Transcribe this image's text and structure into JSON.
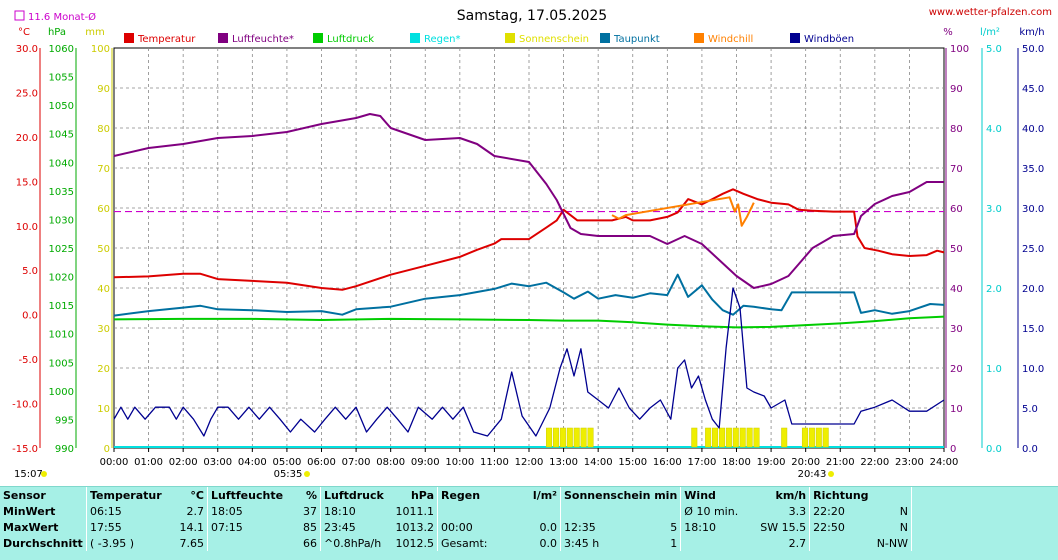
{
  "header": {
    "title": "Samstag, 17.05.2025",
    "site": "www.wetter-pfalzen.com",
    "month_avg_label": "11.6 Monat-Ø",
    "unit_c": "°C",
    "unit_hpa": "hPa",
    "unit_mm": "mm",
    "unit_pct": "%",
    "unit_lm2": "l/m²",
    "unit_kmh": "km/h",
    "sunrise": "05:35",
    "sunset": "20:43",
    "timestamp": "15:07"
  },
  "legend": [
    {
      "label": "Temperatur",
      "color": "#dd0000"
    },
    {
      "label": "Luftfeuchte*",
      "color": "#800080"
    },
    {
      "label": "Luftdruck",
      "color": "#00cc00"
    },
    {
      "label": "Regen*",
      "color": "#00e0e0"
    },
    {
      "label": "Sonnenschein",
      "color": "#e0e000"
    },
    {
      "label": "Taupunkt",
      "color": "#0070a0"
    },
    {
      "label": "Windchill",
      "color": "#ff8000"
    },
    {
      "label": "Windböen",
      "color": "#000090"
    }
  ],
  "chart_data": {
    "type": "line",
    "title": "Samstag, 17.05.2025",
    "x_ticks": [
      "00:00",
      "01:00",
      "02:00",
      "03:00",
      "04:00",
      "05:00",
      "06:00",
      "07:00",
      "08:00",
      "09:00",
      "10:00",
      "11:00",
      "12:00",
      "13:00",
      "14:00",
      "15:00",
      "16:00",
      "17:00",
      "18:00",
      "19:00",
      "20:00",
      "21:00",
      "22:00",
      "23:00",
      "24:00"
    ],
    "axes": {
      "temp_c": {
        "range": [
          -15,
          30
        ],
        "ticks": [
          "30.0",
          "25.0",
          "20.0",
          "15.0",
          "10.0",
          "5.0",
          "0.0",
          "-5.0",
          "-10.0",
          "-15.0"
        ]
      },
      "pressure_hpa": {
        "range": [
          990,
          1060
        ],
        "ticks": [
          "1060",
          "1055",
          "1050",
          "1045",
          "1040",
          "1035",
          "1030",
          "1025",
          "1020",
          "1015",
          "1010",
          "1005",
          "1000",
          "995",
          "990"
        ]
      },
      "precip_mm": {
        "range": [
          0,
          100
        ],
        "ticks": [
          "100",
          "90",
          "80",
          "70",
          "60",
          "50",
          "40",
          "30",
          "20",
          "10",
          "0"
        ]
      },
      "humidity_pct": {
        "range": [
          0,
          100
        ],
        "ticks": [
          "100",
          "90",
          "80",
          "70",
          "60",
          "50",
          "40",
          "30",
          "20",
          "10",
          "0"
        ]
      },
      "rain_lm2": {
        "range": [
          0,
          5
        ],
        "ticks": [
          "5.0",
          "4.0",
          "3.0",
          "2.0",
          "1.0",
          "0.0"
        ]
      },
      "wind_kmh": {
        "range": [
          0,
          50
        ],
        "ticks": [
          "50.0",
          "45.0",
          "40.0",
          "35.0",
          "30.0",
          "25.0",
          "20.0",
          "15.0",
          "10.0",
          "5.0",
          "0.0"
        ]
      }
    },
    "month_avg_temp": 11.6,
    "series": [
      {
        "name": "Temperatur",
        "axis": "temp_c",
        "color": "#dd0000",
        "points": [
          [
            0,
            4.2
          ],
          [
            1,
            4.3
          ],
          [
            2,
            4.6
          ],
          [
            2.5,
            4.6
          ],
          [
            3,
            4.0
          ],
          [
            4,
            3.8
          ],
          [
            5,
            3.6
          ],
          [
            6,
            3.0
          ],
          [
            6.6,
            2.8
          ],
          [
            7,
            3.2
          ],
          [
            8,
            4.5
          ],
          [
            9,
            5.5
          ],
          [
            10,
            6.5
          ],
          [
            10.5,
            7.3
          ],
          [
            11,
            8.0
          ],
          [
            11.2,
            8.5
          ],
          [
            12,
            8.5
          ],
          [
            12.5,
            9.8
          ],
          [
            12.8,
            10.6
          ],
          [
            13.0,
            11.8
          ],
          [
            13.4,
            10.6
          ],
          [
            14,
            10.6
          ],
          [
            14.4,
            10.6
          ],
          [
            14.8,
            11.0
          ],
          [
            15,
            10.6
          ],
          [
            15.5,
            10.6
          ],
          [
            16,
            11.0
          ],
          [
            16.3,
            11.5
          ],
          [
            16.6,
            13.0
          ],
          [
            17,
            12.4
          ],
          [
            17.3,
            13.0
          ],
          [
            17.6,
            13.6
          ],
          [
            17.9,
            14.1
          ],
          [
            18.2,
            13.6
          ],
          [
            18.6,
            13.0
          ],
          [
            19,
            12.6
          ],
          [
            19.5,
            12.4
          ],
          [
            19.8,
            11.8
          ],
          [
            20.2,
            11.7
          ],
          [
            20.8,
            11.6
          ],
          [
            21.4,
            11.6
          ],
          [
            21.5,
            8.8
          ],
          [
            21.7,
            7.5
          ],
          [
            22.1,
            7.2
          ],
          [
            22.5,
            6.8
          ],
          [
            23,
            6.6
          ],
          [
            23.5,
            6.7
          ],
          [
            23.8,
            7.2
          ],
          [
            24,
            7.0
          ]
        ]
      },
      {
        "name": "Windchill",
        "axis": "temp_c",
        "color": "#ff8000",
        "points": [
          [
            14.4,
            11.2
          ],
          [
            14.6,
            10.8
          ],
          [
            14.8,
            11.2
          ],
          [
            17.8,
            13.2
          ],
          [
            17.95,
            11.6
          ],
          [
            18.05,
            12.4
          ],
          [
            18.15,
            10.0
          ],
          [
            18.3,
            11.0
          ],
          [
            18.5,
            12.6
          ]
        ]
      },
      {
        "name": "Luftfeuchte*",
        "axis": "humidity_pct",
        "color": "#800080",
        "points": [
          [
            0,
            73
          ],
          [
            1,
            75
          ],
          [
            2,
            76
          ],
          [
            3,
            77.5
          ],
          [
            4,
            78
          ],
          [
            5,
            79
          ],
          [
            6,
            81
          ],
          [
            7,
            82.5
          ],
          [
            7.4,
            83.5
          ],
          [
            7.7,
            83
          ],
          [
            8,
            80
          ],
          [
            9,
            77
          ],
          [
            10,
            77.5
          ],
          [
            10.5,
            76
          ],
          [
            11,
            73
          ],
          [
            12,
            71.5
          ],
          [
            12.5,
            66
          ],
          [
            12.8,
            62
          ],
          [
            13.2,
            55
          ],
          [
            13.5,
            53.5
          ],
          [
            14,
            53
          ],
          [
            15,
            53
          ],
          [
            15.5,
            53
          ],
          [
            16,
            51
          ],
          [
            16.5,
            53
          ],
          [
            17,
            51
          ],
          [
            17.5,
            47
          ],
          [
            18,
            43
          ],
          [
            18.5,
            40
          ],
          [
            19,
            41
          ],
          [
            19.5,
            43
          ],
          [
            19.8,
            46
          ],
          [
            20.2,
            50
          ],
          [
            20.8,
            53
          ],
          [
            21.4,
            53.5
          ],
          [
            21.6,
            58
          ],
          [
            22,
            61
          ],
          [
            22.5,
            63
          ],
          [
            23,
            64
          ],
          [
            23.5,
            66.5
          ],
          [
            24,
            66.5
          ]
        ]
      },
      {
        "name": "Luftdruck",
        "axis": "pressure_hpa",
        "color": "#00cc00",
        "points": [
          [
            0,
            1012.5
          ],
          [
            2,
            1012.6
          ],
          [
            4,
            1012.6
          ],
          [
            6,
            1012.4
          ],
          [
            8,
            1012.6
          ],
          [
            10,
            1012.5
          ],
          [
            12,
            1012.4
          ],
          [
            13,
            1012.3
          ],
          [
            14,
            1012.3
          ],
          [
            15,
            1012.0
          ],
          [
            16,
            1011.6
          ],
          [
            17,
            1011.3
          ],
          [
            18,
            1011.1
          ],
          [
            19,
            1011.2
          ],
          [
            20,
            1011.5
          ],
          [
            21,
            1011.8
          ],
          [
            22,
            1012.2
          ],
          [
            23,
            1012.7
          ],
          [
            24,
            1013.0
          ]
        ]
      },
      {
        "name": "Taupunkt",
        "axis": "temp_c",
        "color": "#0070a0",
        "points": [
          [
            0,
            -0.1
          ],
          [
            1,
            0.4
          ],
          [
            2,
            0.8
          ],
          [
            2.5,
            1.0
          ],
          [
            3,
            0.6
          ],
          [
            4,
            0.5
          ],
          [
            5,
            0.3
          ],
          [
            6,
            0.4
          ],
          [
            6.6,
            0.0
          ],
          [
            7,
            0.6
          ],
          [
            8,
            0.9
          ],
          [
            9,
            1.8
          ],
          [
            10,
            2.2
          ],
          [
            11,
            2.9
          ],
          [
            11.5,
            3.5
          ],
          [
            12,
            3.2
          ],
          [
            12.5,
            3.6
          ],
          [
            13,
            2.5
          ],
          [
            13.3,
            1.8
          ],
          [
            13.7,
            2.6
          ],
          [
            14,
            1.8
          ],
          [
            14.5,
            2.2
          ],
          [
            15,
            1.9
          ],
          [
            15.5,
            2.4
          ],
          [
            16,
            2.2
          ],
          [
            16.3,
            4.5
          ],
          [
            16.6,
            2.0
          ],
          [
            17,
            3.3
          ],
          [
            17.3,
            1.7
          ],
          [
            17.6,
            0.5
          ],
          [
            17.9,
            0.0
          ],
          [
            18.2,
            1.0
          ],
          [
            18.5,
            0.9
          ],
          [
            19,
            0.6
          ],
          [
            19.3,
            0.5
          ],
          [
            19.6,
            2.5
          ],
          [
            20,
            2.5
          ],
          [
            20.8,
            2.5
          ],
          [
            21.4,
            2.5
          ],
          [
            21.6,
            0.2
          ],
          [
            22,
            0.5
          ],
          [
            22.5,
            0.1
          ],
          [
            23,
            0.4
          ],
          [
            23.6,
            1.2
          ],
          [
            24,
            1.1
          ]
        ]
      },
      {
        "name": "Windböen",
        "axis": "wind_kmh",
        "color": "#000090",
        "points": [
          [
            0,
            3.6
          ],
          [
            0.2,
            5.1
          ],
          [
            0.4,
            3.6
          ],
          [
            0.6,
            5.1
          ],
          [
            0.9,
            3.6
          ],
          [
            1.2,
            5.1
          ],
          [
            1.6,
            5.1
          ],
          [
            1.8,
            3.6
          ],
          [
            2.0,
            5.1
          ],
          [
            2.3,
            3.6
          ],
          [
            2.6,
            1.5
          ],
          [
            2.8,
            3.6
          ],
          [
            3.0,
            5.1
          ],
          [
            3.3,
            5.1
          ],
          [
            3.6,
            3.6
          ],
          [
            3.9,
            5.1
          ],
          [
            4.2,
            3.6
          ],
          [
            4.5,
            5.1
          ],
          [
            4.8,
            3.6
          ],
          [
            5.1,
            2.0
          ],
          [
            5.4,
            3.6
          ],
          [
            5.8,
            2.0
          ],
          [
            6.1,
            3.6
          ],
          [
            6.4,
            5.1
          ],
          [
            6.7,
            3.6
          ],
          [
            7.0,
            5.1
          ],
          [
            7.3,
            2.0
          ],
          [
            7.6,
            3.6
          ],
          [
            7.9,
            5.1
          ],
          [
            8.2,
            3.6
          ],
          [
            8.5,
            2.0
          ],
          [
            8.8,
            5.1
          ],
          [
            9.2,
            3.6
          ],
          [
            9.5,
            5.1
          ],
          [
            9.8,
            3.6
          ],
          [
            10.1,
            5.1
          ],
          [
            10.4,
            2.0
          ],
          [
            10.8,
            1.5
          ],
          [
            11.2,
            3.6
          ],
          [
            11.5,
            9.5
          ],
          [
            11.8,
            4.0
          ],
          [
            12.2,
            1.5
          ],
          [
            12.6,
            5.0
          ],
          [
            12.9,
            10.0
          ],
          [
            13.1,
            12.4
          ],
          [
            13.3,
            9.0
          ],
          [
            13.5,
            12.4
          ],
          [
            13.7,
            7.0
          ],
          [
            14,
            6.0
          ],
          [
            14.3,
            5.0
          ],
          [
            14.6,
            7.5
          ],
          [
            14.9,
            5.0
          ],
          [
            15.2,
            3.6
          ],
          [
            15.5,
            5.0
          ],
          [
            15.8,
            6.0
          ],
          [
            16.1,
            3.6
          ],
          [
            16.3,
            10.0
          ],
          [
            16.5,
            11.0
          ],
          [
            16.7,
            7.5
          ],
          [
            16.9,
            9.0
          ],
          [
            17.1,
            6.0
          ],
          [
            17.3,
            3.6
          ],
          [
            17.5,
            2.5
          ],
          [
            17.7,
            12.5
          ],
          [
            17.9,
            20.0
          ],
          [
            18.1,
            17.5
          ],
          [
            18.3,
            7.5
          ],
          [
            18.5,
            7.0
          ],
          [
            18.8,
            6.5
          ],
          [
            19,
            5.0
          ],
          [
            19.4,
            6.0
          ],
          [
            19.6,
            3.0
          ],
          [
            20,
            3.0
          ],
          [
            20.5,
            3.0
          ],
          [
            21,
            3.0
          ],
          [
            21.4,
            3.0
          ],
          [
            21.6,
            4.6
          ],
          [
            22,
            5.1
          ],
          [
            22.5,
            6.0
          ],
          [
            23,
            4.6
          ],
          [
            23.5,
            4.6
          ],
          [
            24,
            6.0
          ]
        ]
      }
    ],
    "sunshine_hours": [
      12.5,
      12.7,
      12.9,
      13.1,
      13.3,
      13.5,
      13.7,
      16.7,
      17.1,
      17.3,
      17.5,
      17.7,
      17.9,
      18.1,
      18.3,
      18.5,
      19.3,
      19.9,
      20.1,
      20.3,
      20.5
    ],
    "rain": []
  },
  "stats": {
    "headers": [
      "Sensor",
      "Temperatur",
      "°C",
      "Luftfeuchte",
      "%",
      "Luftdruck",
      "hPa",
      "Regen",
      "l/m²",
      "Sonnenschein min",
      "Wind",
      "km/h",
      "Richtung"
    ],
    "rows": [
      [
        "MinWert",
        "06:15",
        "2.7",
        "18:05",
        "37",
        "18:10",
        "1011.1",
        "",
        "",
        "",
        "Ø 10 min.",
        "3.3",
        "22:20",
        "N"
      ],
      [
        "MaxWert",
        "17:55",
        "14.1",
        "07:15",
        "85",
        "23:45",
        "1013.2",
        "00:00",
        "0.0",
        "12:35",
        "5",
        "18:10",
        "SW 15.5",
        "22:50",
        "N"
      ],
      [
        "Durchschnitt",
        "( -3.95 )",
        "7.65",
        "",
        "66",
        "^0.8hPa/h",
        "1012.5",
        "Gesamt:",
        "0.0",
        "3:45 h",
        "1",
        "",
        "2.7",
        "",
        "N-NW"
      ]
    ]
  }
}
